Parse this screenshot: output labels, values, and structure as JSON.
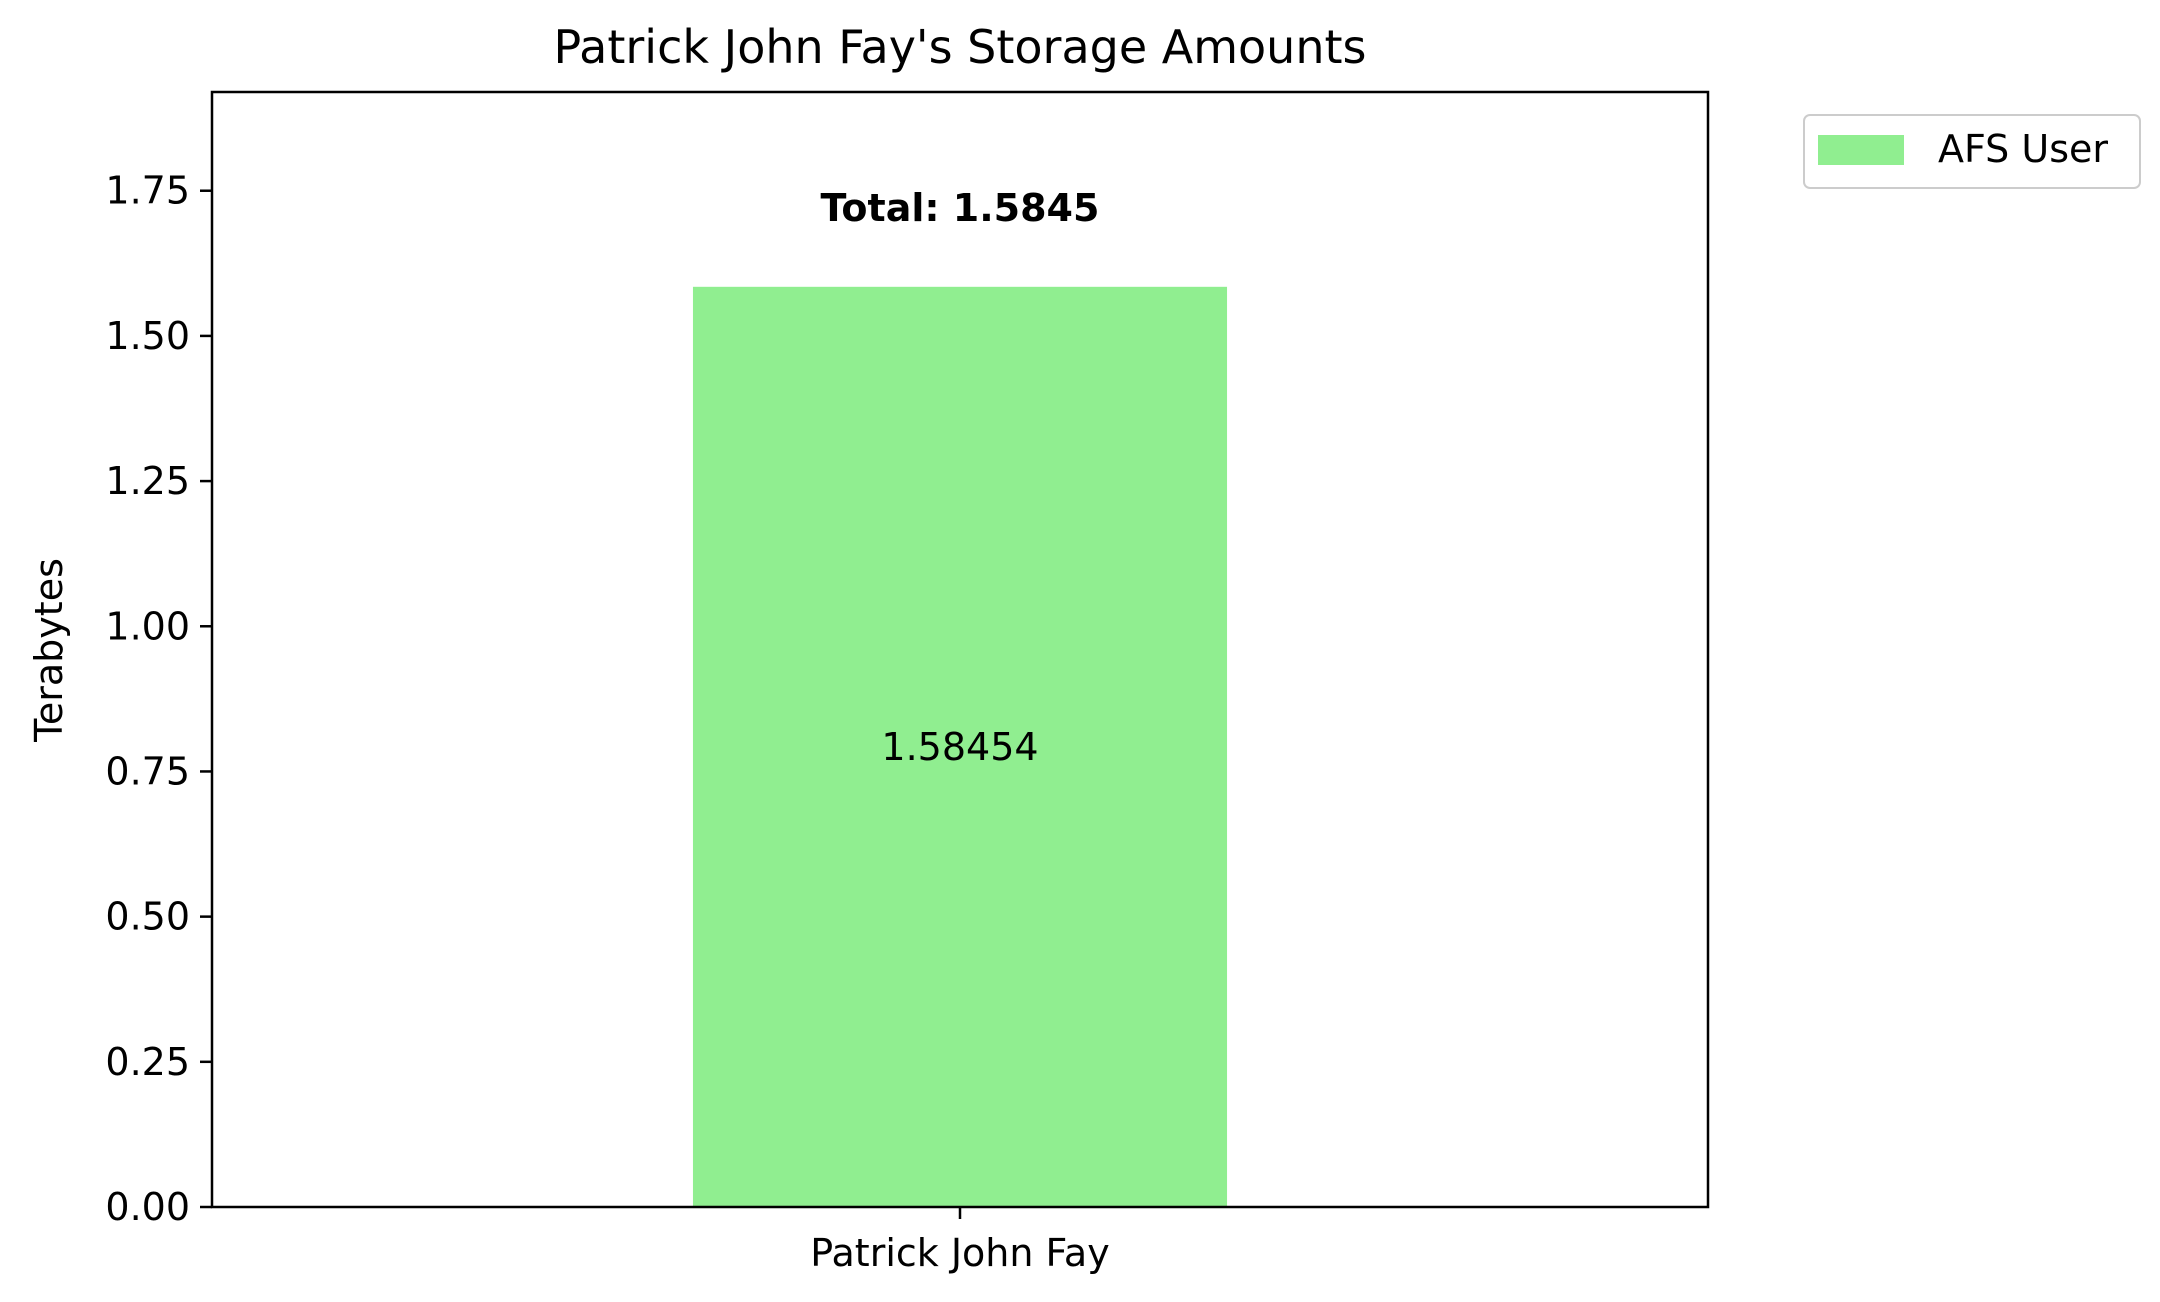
{
  "chart_data": {
    "type": "bar",
    "title": "Patrick John Fay's Storage Amounts",
    "xlabel": "",
    "ylabel": "Terabytes",
    "categories": [
      "Patrick John Fay"
    ],
    "series": [
      {
        "name": "AFS User",
        "values": [
          1.58454
        ],
        "color": "#90ee90",
        "value_labels": [
          "1.58454"
        ]
      }
    ],
    "total_labels": [
      "Total: 1.5845"
    ],
    "ylim": [
      0,
      1.92
    ],
    "yticks": [
      0.0,
      0.25,
      0.5,
      0.75,
      1.0,
      1.25,
      1.5,
      1.75
    ],
    "ytick_labels": [
      "0.00",
      "0.25",
      "0.50",
      "0.75",
      "1.00",
      "1.25",
      "1.50",
      "1.75"
    ],
    "grid": false,
    "legend_position": "outside-top-right"
  }
}
